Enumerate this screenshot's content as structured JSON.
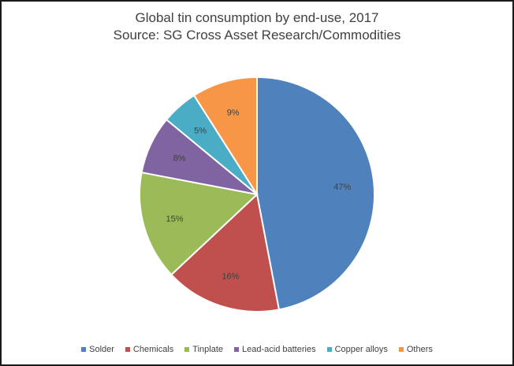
{
  "chart_data": {
    "type": "pie",
    "title": "Global tin consumption by end-use, 2017",
    "subtitle": "Source: SG Cross Asset Research/Commodities",
    "categories": [
      "Solder",
      "Chemicals",
      "Tinplate",
      "Lead-acid batteries",
      "Copper alloys",
      "Others"
    ],
    "values": [
      47,
      16,
      15,
      8,
      5,
      9
    ],
    "labels": [
      "47%",
      "16%",
      "15%",
      "8%",
      "5%",
      "9%"
    ],
    "colors": [
      "#4F81BD",
      "#C0504D",
      "#9BBB59",
      "#8064A2",
      "#4BACC6",
      "#F79646"
    ],
    "legend_position": "bottom"
  }
}
